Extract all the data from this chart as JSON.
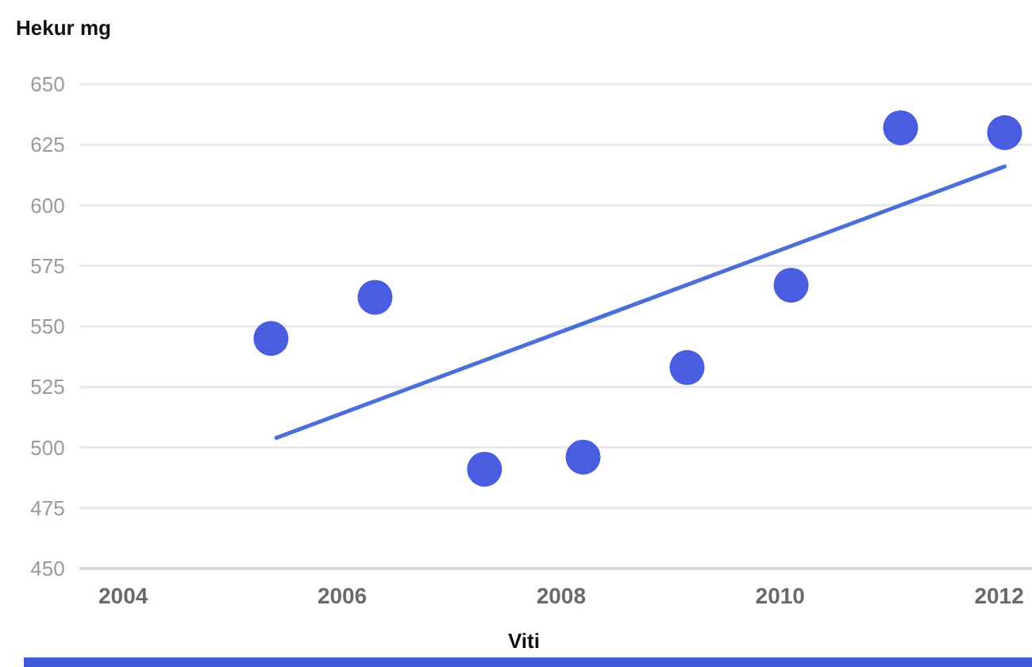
{
  "chart_data": {
    "type": "scatter",
    "xlabel": "Viti",
    "ylabel": "Hekur mg",
    "xlim": [
      2003.6,
      2012.3
    ],
    "xticks": [
      2004,
      2006,
      2008,
      2010,
      2012
    ],
    "ylim": [
      450,
      650
    ],
    "yticks": [
      450,
      475,
      500,
      525,
      550,
      575,
      600,
      625,
      650
    ],
    "grid": "y",
    "marker": "circle",
    "series": [
      {
        "color": "#4a5ce0",
        "x": [
          2005.35,
          2006.3,
          2007.3,
          2008.2,
          2009.15,
          2010.1,
          2011.1,
          2012.05
        ],
        "values": [
          545,
          562,
          491,
          496,
          533,
          567,
          632,
          630
        ]
      },
      {
        "type": "line",
        "color": "#4a6fd8",
        "line_style": "solid",
        "marker": "none",
        "x": [
          2005.4,
          2012.05
        ],
        "values": [
          504,
          616
        ]
      }
    ]
  }
}
